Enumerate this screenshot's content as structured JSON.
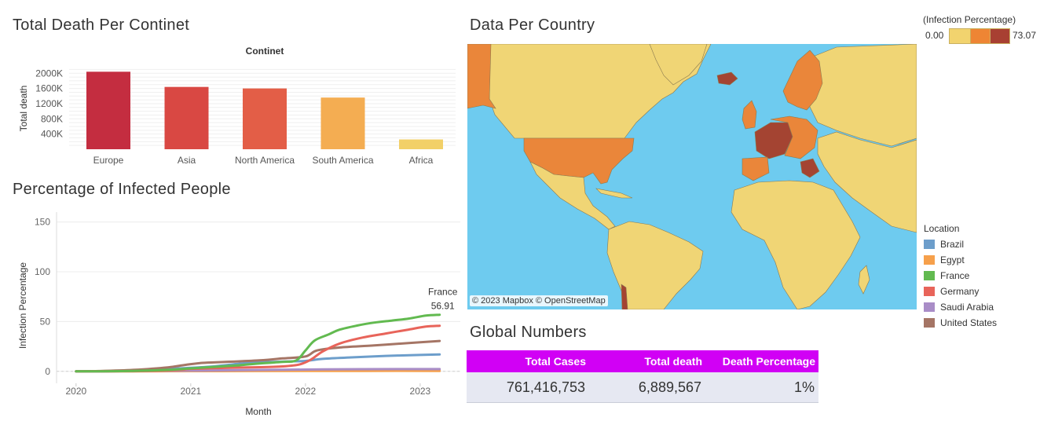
{
  "titles": {
    "bar": "Total Death Per Continet",
    "line": "Percentage of Infected People",
    "map": "Data Per Country",
    "global": "Global Numbers"
  },
  "map": {
    "credit": "© 2023 Mapbox © OpenStreetMap",
    "legend_title": "(Infection Percentage)",
    "legend_min": "0.00",
    "legend_max": "73.07",
    "legend_colors": [
      "#f2d36e",
      "#ee8534",
      "#a84032"
    ],
    "ocean_color": "#6ecbef",
    "low_color": "#f0d575",
    "mid_color": "#ea863a",
    "high_color": "#a44432"
  },
  "location_legend": {
    "title": "Location",
    "items": [
      {
        "name": "Brazil",
        "color": "#6d9ecb"
      },
      {
        "name": "Egypt",
        "color": "#f6a04b"
      },
      {
        "name": "France",
        "color": "#62ba50"
      },
      {
        "name": "Germany",
        "color": "#e8645a"
      },
      {
        "name": "Saudi Arabia",
        "color": "#a98dc7"
      },
      {
        "name": "United States",
        "color": "#a57565"
      }
    ]
  },
  "global_table": {
    "headers": [
      "Total Cases",
      "Total death",
      "Death Percentage"
    ],
    "values": [
      "761,416,753",
      "6,889,567",
      "1%"
    ]
  },
  "chart_data": [
    {
      "type": "bar",
      "title": "Continet",
      "xlabel": "",
      "ylabel": "Total death",
      "categories": [
        "Europe",
        "Asia",
        "North America",
        "South America",
        "Africa"
      ],
      "values": [
        2040000,
        1640000,
        1600000,
        1360000,
        258000
      ],
      "colors": [
        "#c42d40",
        "#d94843",
        "#e35e47",
        "#f4ad52",
        "#f2d068"
      ],
      "yticks": [
        "400K",
        "800K",
        "1200K",
        "1600K",
        "2000K"
      ],
      "ytick_values": [
        400000,
        800000,
        1200000,
        1600000,
        2000000
      ],
      "ylim": [
        0,
        2150000
      ],
      "grid": true
    },
    {
      "type": "line",
      "xlabel": "Month",
      "ylabel": "Infection Percentage",
      "xticks": [
        "2020",
        "2021",
        "2022",
        "2023"
      ],
      "xtick_values": [
        2020,
        2021,
        2022,
        2023
      ],
      "xlim": [
        2019.83,
        2023.35
      ],
      "yticks": [
        "0",
        "50",
        "100",
        "150"
      ],
      "ytick_values": [
        0,
        50,
        100,
        150
      ],
      "ylim": [
        -12,
        160
      ],
      "annotation": {
        "series": "France",
        "label": "France",
        "value": "56.91"
      },
      "series": [
        {
          "name": "France",
          "color": "#62ba50",
          "x": [
            2020,
            2020.2,
            2020.5,
            2020.8,
            2021.0,
            2021.2,
            2021.4,
            2021.6,
            2021.8,
            2021.92,
            2022.0,
            2022.08,
            2022.2,
            2022.3,
            2022.45,
            2022.6,
            2022.75,
            2022.9,
            2023.05,
            2023.17
          ],
          "y": [
            0,
            0.1,
            0.5,
            1.5,
            3,
            4.5,
            6,
            8,
            9.5,
            11,
            21,
            31,
            37,
            42,
            46,
            49,
            51,
            53,
            56,
            56.91
          ]
        },
        {
          "name": "Germany",
          "color": "#e8645a",
          "x": [
            2020,
            2020.3,
            2020.6,
            2020.9,
            2021.0,
            2021.3,
            2021.6,
            2021.8,
            2021.95,
            2022.05,
            2022.15,
            2022.3,
            2022.5,
            2022.7,
            2022.9,
            2023.05,
            2023.17
          ],
          "y": [
            0,
            0.1,
            0.3,
            1.5,
            2.5,
            3.5,
            4.2,
            5,
            7,
            12,
            20,
            28,
            34,
            38,
            42,
            45,
            45.8
          ]
        },
        {
          "name": "United States",
          "color": "#a57565",
          "x": [
            2020,
            2020.2,
            2020.5,
            2020.8,
            2020.95,
            2021.1,
            2021.3,
            2021.6,
            2021.8,
            2022.0,
            2022.1,
            2022.3,
            2022.6,
            2022.9,
            2023.17
          ],
          "y": [
            0,
            0.3,
            1.5,
            4,
            6.5,
            8.5,
            9.5,
            11,
            13,
            15,
            21,
            24,
            26,
            28.5,
            30.5
          ]
        },
        {
          "name": "Brazil",
          "color": "#6d9ecb",
          "x": [
            2020,
            2020.3,
            2020.6,
            2020.9,
            2021.2,
            2021.5,
            2021.8,
            2022.0,
            2022.15,
            2022.4,
            2022.7,
            2023.0,
            2023.17
          ],
          "y": [
            0,
            0.2,
            1.5,
            3,
            5,
            8.5,
            9.8,
            10.5,
            12.5,
            14,
            15.5,
            16.5,
            17
          ]
        },
        {
          "name": "Saudi Arabia",
          "color": "#a98dc7",
          "x": [
            2020,
            2020.5,
            2021.0,
            2021.5,
            2022.0,
            2022.5,
            2023.17
          ],
          "y": [
            0,
            0.3,
            0.8,
            1.3,
            1.8,
            2.2,
            2.3
          ]
        },
        {
          "name": "Egypt",
          "color": "#f6a04b",
          "x": [
            2020,
            2020.5,
            2021.0,
            2021.5,
            2022.0,
            2022.5,
            2023.17
          ],
          "y": [
            0,
            0.1,
            0.2,
            0.3,
            0.4,
            0.5,
            0.5
          ]
        }
      ],
      "grid": true
    }
  ]
}
